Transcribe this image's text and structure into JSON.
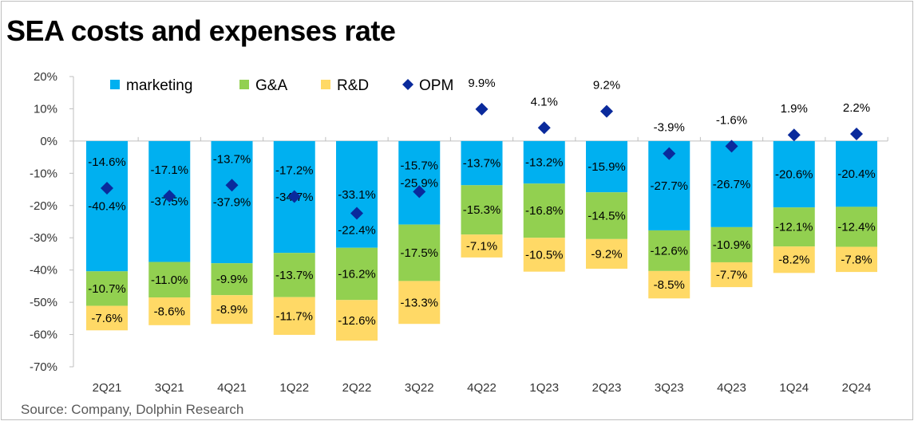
{
  "chart_data": {
    "type": "bar",
    "stacked": true,
    "title": "SEA costs and expenses rate",
    "source": "Source: Company, Dolphin Research",
    "categories": [
      "2Q21",
      "3Q21",
      "4Q21",
      "1Q22",
      "2Q22",
      "3Q22",
      "4Q22",
      "1Q23",
      "2Q23",
      "3Q23",
      "4Q23",
      "1Q24",
      "2Q24"
    ],
    "ylim": [
      -70,
      20
    ],
    "yticks": [
      20,
      10,
      0,
      -10,
      -20,
      -30,
      -40,
      -50,
      -60,
      -70
    ],
    "y_format": "percent",
    "grid": false,
    "legend_position": "top",
    "series": [
      {
        "name": "marketing",
        "kind": "bar",
        "color": "#00b0f0",
        "values": [
          -40.4,
          -37.5,
          -37.9,
          -34.7,
          -33.1,
          -25.9,
          -13.7,
          -13.2,
          -15.9,
          -27.7,
          -26.7,
          -20.6,
          -20.4
        ]
      },
      {
        "name": "G&A",
        "kind": "bar",
        "color": "#92d050",
        "values": [
          -10.7,
          -11.0,
          -9.9,
          -13.7,
          -16.2,
          -17.5,
          -15.3,
          -16.8,
          -14.5,
          -12.6,
          -10.9,
          -12.1,
          -12.4
        ]
      },
      {
        "name": "R&D",
        "kind": "bar",
        "color": "#ffd966",
        "values": [
          -7.6,
          -8.6,
          -8.9,
          -11.7,
          -12.6,
          -13.3,
          -7.1,
          -10.5,
          -9.2,
          -8.5,
          -7.7,
          -8.2,
          -7.8
        ]
      },
      {
        "name": "OPM",
        "kind": "scatter",
        "marker": "diamond",
        "color": "#0a2a9c",
        "values": [
          -14.6,
          -17.1,
          -13.7,
          -17.2,
          -22.4,
          -15.7,
          9.9,
          4.1,
          9.2,
          -3.9,
          -1.6,
          1.9,
          2.2
        ]
      }
    ]
  }
}
